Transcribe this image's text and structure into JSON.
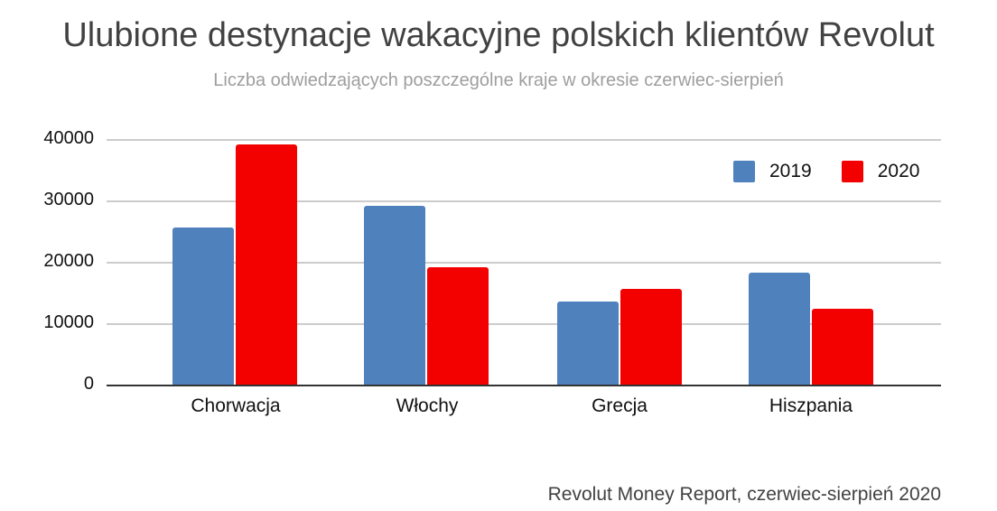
{
  "title": "Ulubione destynacje wakacyjne polskich klientów Revolut",
  "subtitle": "Liczba odwiedzających poszczególne kraje w okresie czerwiec-sierpień",
  "source": "Revolut Money Report, czerwiec-sierpień 2020",
  "colors": {
    "2019": "#4f81bd",
    "2020": "#f30000"
  },
  "legend": [
    {
      "label": "2019"
    },
    {
      "label": "2020"
    }
  ],
  "y_ticks": [
    "40000",
    "30000",
    "20000",
    "10000",
    "0"
  ],
  "categories": [
    "Chorwacja",
    "Włochy",
    "Grecja",
    "Hiszpania"
  ],
  "chart_data": {
    "type": "bar",
    "title": "Ulubione destynacje wakacyjne polskich klientów Revolut",
    "subtitle": "Liczba odwiedzających poszczególne kraje w okresie czerwiec-sierpień",
    "categories": [
      "Chorwacja",
      "Włochy",
      "Grecja",
      "Hiszpania"
    ],
    "series": [
      {
        "name": "2019",
        "color": "#4f81bd",
        "values": [
          25700,
          29300,
          13700,
          18400
        ]
      },
      {
        "name": "2020",
        "color": "#f30000",
        "values": [
          39300,
          19300,
          15700,
          12500
        ]
      }
    ],
    "xlabel": "",
    "ylabel": "",
    "ylim": [
      0,
      40000
    ],
    "y_ticks": [
      0,
      10000,
      20000,
      30000,
      40000
    ],
    "grid": true,
    "legend_position": "top-right",
    "annotation": "Revolut Money Report, czerwiec-sierpień 2020"
  }
}
